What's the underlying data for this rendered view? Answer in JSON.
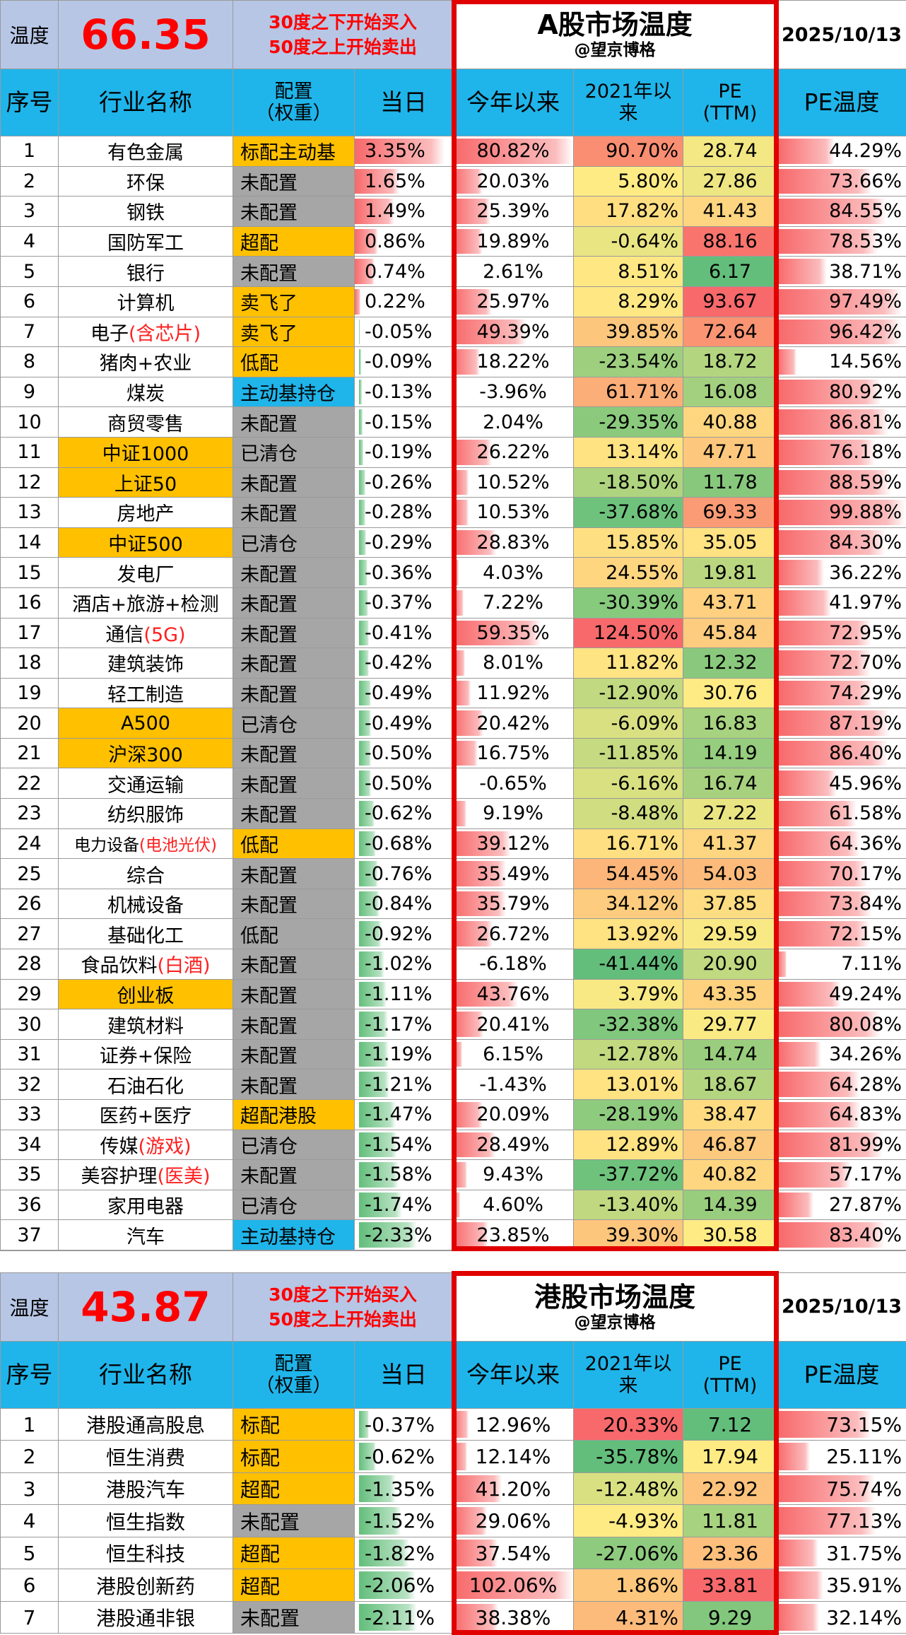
{
  "a_share": {
    "temp_label": "温度",
    "temp_value": "66.35",
    "note_buy": "30度之下开始买入",
    "note_sell": "50度之上开始卖出",
    "title": "A股市场温度",
    "subtitle": "@望京博格",
    "date": "2025/10/13",
    "headers": {
      "seq": "序号",
      "name": "行业名称",
      "cfg_line1": "配置",
      "cfg_line2": "（权重）",
      "day": "当日",
      "ytd": "今年以来",
      "since2021_line1": "2021年以",
      "since2021_line2": "来",
      "pe_line1": "PE",
      "pe_line2": "(TTM)",
      "pe_temp": "PE温度"
    },
    "rows": [
      {
        "seq": "1",
        "name": "有色金属",
        "name_hl": "",
        "cfg": "标配主动基",
        "cfg_style": "orange",
        "day": "3.35%",
        "ytd": "80.82%",
        "s2021": "90.70%",
        "pe": "28.74",
        "pe_temp": "44.29%"
      },
      {
        "seq": "2",
        "name": "环保",
        "name_hl": "",
        "cfg": "未配置",
        "cfg_style": "grey",
        "day": "1.65%",
        "ytd": "20.03%",
        "s2021": "5.80%",
        "pe": "27.86",
        "pe_temp": "73.66%"
      },
      {
        "seq": "3",
        "name": "钢铁",
        "name_hl": "",
        "cfg": "未配置",
        "cfg_style": "grey",
        "day": "1.49%",
        "ytd": "25.39%",
        "s2021": "17.82%",
        "pe": "41.43",
        "pe_temp": "84.55%"
      },
      {
        "seq": "4",
        "name": "国防军工",
        "name_hl": "",
        "cfg": "超配",
        "cfg_style": "orange",
        "day": "0.86%",
        "ytd": "19.89%",
        "s2021": "-0.64%",
        "pe": "88.16",
        "pe_temp": "78.53%"
      },
      {
        "seq": "5",
        "name": "银行",
        "name_hl": "",
        "cfg": "未配置",
        "cfg_style": "grey",
        "day": "0.74%",
        "ytd": "2.61%",
        "s2021": "8.51%",
        "pe": "6.17",
        "pe_temp": "38.71%"
      },
      {
        "seq": "6",
        "name": "计算机",
        "name_hl": "",
        "cfg": "卖飞了",
        "cfg_style": "orange",
        "day": "0.22%",
        "ytd": "25.97%",
        "s2021": "8.29%",
        "pe": "93.67",
        "pe_temp": "97.49%"
      },
      {
        "seq": "7",
        "name": "电子",
        "name_red": "(含芯片)",
        "name_hl": "",
        "cfg": "卖飞了",
        "cfg_style": "orange",
        "day": "-0.05%",
        "ytd": "49.39%",
        "s2021": "39.85%",
        "pe": "72.64",
        "pe_temp": "96.42%"
      },
      {
        "seq": "8",
        "name": "猪肉+农业",
        "name_hl": "",
        "cfg": "低配",
        "cfg_style": "orange",
        "day": "-0.09%",
        "ytd": "18.22%",
        "s2021": "-23.54%",
        "pe": "18.72",
        "pe_temp": "14.56%"
      },
      {
        "seq": "9",
        "name": "煤炭",
        "name_hl": "",
        "cfg": "主动基持仓",
        "cfg_style": "blue",
        "day": "-0.13%",
        "ytd": "-3.96%",
        "s2021": "61.71%",
        "pe": "16.08",
        "pe_temp": "80.92%"
      },
      {
        "seq": "10",
        "name": "商贸零售",
        "name_hl": "",
        "cfg": "未配置",
        "cfg_style": "grey",
        "day": "-0.15%",
        "ytd": "2.04%",
        "s2021": "-29.35%",
        "pe": "40.88",
        "pe_temp": "86.81%"
      },
      {
        "seq": "11",
        "name": "中证1000",
        "name_hl": "orange",
        "cfg": "已清仓",
        "cfg_style": "grey",
        "day": "-0.19%",
        "ytd": "26.22%",
        "s2021": "13.14%",
        "pe": "47.71",
        "pe_temp": "76.18%"
      },
      {
        "seq": "12",
        "name": "上证50",
        "name_hl": "orange",
        "cfg": "未配置",
        "cfg_style": "grey",
        "day": "-0.26%",
        "ytd": "10.52%",
        "s2021": "-18.50%",
        "pe": "11.78",
        "pe_temp": "88.59%"
      },
      {
        "seq": "13",
        "name": "房地产",
        "name_hl": "",
        "cfg": "未配置",
        "cfg_style": "grey",
        "day": "-0.28%",
        "ytd": "10.53%",
        "s2021": "-37.68%",
        "pe": "69.33",
        "pe_temp": "99.88%"
      },
      {
        "seq": "14",
        "name": "中证500",
        "name_hl": "orange",
        "cfg": "已清仓",
        "cfg_style": "grey",
        "day": "-0.29%",
        "ytd": "28.83%",
        "s2021": "15.85%",
        "pe": "35.05",
        "pe_temp": "84.30%"
      },
      {
        "seq": "15",
        "name": "发电厂",
        "name_hl": "",
        "cfg": "未配置",
        "cfg_style": "grey",
        "day": "-0.36%",
        "ytd": "4.03%",
        "s2021": "24.55%",
        "pe": "19.81",
        "pe_temp": "36.22%"
      },
      {
        "seq": "16",
        "name": "酒店+旅游+检测",
        "name_hl": "",
        "cfg": "未配置",
        "cfg_style": "grey",
        "day": "-0.37%",
        "ytd": "7.22%",
        "s2021": "-30.39%",
        "pe": "43.71",
        "pe_temp": "41.97%"
      },
      {
        "seq": "17",
        "name": "通信",
        "name_red": "(5G)",
        "name_hl": "",
        "cfg": "未配置",
        "cfg_style": "grey",
        "day": "-0.41%",
        "ytd": "59.35%",
        "s2021": "124.50%",
        "pe": "45.84",
        "pe_temp": "72.95%"
      },
      {
        "seq": "18",
        "name": "建筑装饰",
        "name_hl": "",
        "cfg": "未配置",
        "cfg_style": "grey",
        "day": "-0.42%",
        "ytd": "8.01%",
        "s2021": "11.82%",
        "pe": "12.32",
        "pe_temp": "72.70%"
      },
      {
        "seq": "19",
        "name": "轻工制造",
        "name_hl": "",
        "cfg": "未配置",
        "cfg_style": "grey",
        "day": "-0.49%",
        "ytd": "11.92%",
        "s2021": "-12.90%",
        "pe": "30.76",
        "pe_temp": "74.29%"
      },
      {
        "seq": "20",
        "name": "A500",
        "name_hl": "orange",
        "cfg": "已清仓",
        "cfg_style": "grey",
        "day": "-0.49%",
        "ytd": "20.42%",
        "s2021": "-6.09%",
        "pe": "16.83",
        "pe_temp": "87.19%"
      },
      {
        "seq": "21",
        "name": "沪深300",
        "name_hl": "orange",
        "cfg": "未配置",
        "cfg_style": "grey",
        "day": "-0.50%",
        "ytd": "16.75%",
        "s2021": "-11.85%",
        "pe": "14.19",
        "pe_temp": "86.40%"
      },
      {
        "seq": "22",
        "name": "交通运输",
        "name_hl": "",
        "cfg": "未配置",
        "cfg_style": "grey",
        "day": "-0.50%",
        "ytd": "-0.65%",
        "s2021": "-6.16%",
        "pe": "16.74",
        "pe_temp": "45.96%"
      },
      {
        "seq": "23",
        "name": "纺织服饰",
        "name_hl": "",
        "cfg": "未配置",
        "cfg_style": "grey",
        "day": "-0.62%",
        "ytd": "9.19%",
        "s2021": "-8.48%",
        "pe": "27.22",
        "pe_temp": "61.58%"
      },
      {
        "seq": "24",
        "name": "电力设备",
        "name_red": "(电池光伏)",
        "name_hl": "",
        "name_small": true,
        "cfg": "低配",
        "cfg_style": "orange",
        "day": "-0.68%",
        "ytd": "39.12%",
        "s2021": "16.71%",
        "pe": "41.37",
        "pe_temp": "64.36%"
      },
      {
        "seq": "25",
        "name": "综合",
        "name_hl": "",
        "cfg": "未配置",
        "cfg_style": "grey",
        "day": "-0.76%",
        "ytd": "35.49%",
        "s2021": "54.45%",
        "pe": "54.03",
        "pe_temp": "70.17%"
      },
      {
        "seq": "26",
        "name": "机械设备",
        "name_hl": "",
        "cfg": "未配置",
        "cfg_style": "grey",
        "day": "-0.84%",
        "ytd": "35.79%",
        "s2021": "34.12%",
        "pe": "37.85",
        "pe_temp": "73.84%"
      },
      {
        "seq": "27",
        "name": "基础化工",
        "name_hl": "",
        "cfg": "低配",
        "cfg_style": "grey",
        "day": "-0.92%",
        "ytd": "26.72%",
        "s2021": "13.92%",
        "pe": "29.59",
        "pe_temp": "72.15%"
      },
      {
        "seq": "28",
        "name": "食品饮料",
        "name_red": "(白酒)",
        "name_hl": "",
        "cfg": "未配置",
        "cfg_style": "grey",
        "day": "-1.02%",
        "ytd": "-6.18%",
        "s2021": "-41.44%",
        "pe": "20.90",
        "pe_temp": "7.11%"
      },
      {
        "seq": "29",
        "name": "创业板",
        "name_hl": "orange",
        "cfg": "未配置",
        "cfg_style": "grey",
        "day": "-1.11%",
        "ytd": "43.76%",
        "s2021": "3.79%",
        "pe": "43.35",
        "pe_temp": "49.24%"
      },
      {
        "seq": "30",
        "name": "建筑材料",
        "name_hl": "",
        "cfg": "未配置",
        "cfg_style": "grey",
        "day": "-1.17%",
        "ytd": "20.41%",
        "s2021": "-32.38%",
        "pe": "29.77",
        "pe_temp": "80.08%"
      },
      {
        "seq": "31",
        "name": "证券+保险",
        "name_hl": "",
        "cfg": "未配置",
        "cfg_style": "grey",
        "day": "-1.19%",
        "ytd": "6.15%",
        "s2021": "-12.78%",
        "pe": "14.74",
        "pe_temp": "34.26%"
      },
      {
        "seq": "32",
        "name": "石油石化",
        "name_hl": "",
        "cfg": "未配置",
        "cfg_style": "grey",
        "day": "-1.21%",
        "ytd": "-1.43%",
        "s2021": "13.01%",
        "pe": "18.67",
        "pe_temp": "64.28%"
      },
      {
        "seq": "33",
        "name": "医药+医疗",
        "name_hl": "",
        "cfg": "超配港股",
        "cfg_style": "orange",
        "day": "-1.47%",
        "ytd": "20.09%",
        "s2021": "-28.19%",
        "pe": "38.47",
        "pe_temp": "64.83%"
      },
      {
        "seq": "34",
        "name": "传媒",
        "name_red": "(游戏)",
        "name_hl": "",
        "cfg": "已清仓",
        "cfg_style": "grey",
        "day": "-1.54%",
        "ytd": "28.49%",
        "s2021": "12.89%",
        "pe": "46.87",
        "pe_temp": "81.99%"
      },
      {
        "seq": "35",
        "name": "美容护理",
        "name_red": "(医美)",
        "name_hl": "",
        "cfg": "未配置",
        "cfg_style": "grey",
        "day": "-1.58%",
        "ytd": "9.43%",
        "s2021": "-37.72%",
        "pe": "40.82",
        "pe_temp": "57.17%"
      },
      {
        "seq": "36",
        "name": "家用电器",
        "name_hl": "",
        "cfg": "已清仓",
        "cfg_style": "grey",
        "day": "-1.74%",
        "ytd": "4.60%",
        "s2021": "-13.40%",
        "pe": "14.39",
        "pe_temp": "27.87%"
      },
      {
        "seq": "37",
        "name": "汽车",
        "name_hl": "",
        "cfg": "主动基持仓",
        "cfg_style": "blue",
        "day": "-2.33%",
        "ytd": "23.85%",
        "s2021": "39.30%",
        "pe": "30.58",
        "pe_temp": "83.40%"
      }
    ]
  },
  "hk_share": {
    "temp_label": "温度",
    "temp_value": "43.87",
    "note_buy": "30度之下开始买入",
    "note_sell": "50度之上开始卖出",
    "title": "港股市场温度",
    "subtitle": "@望京博格",
    "date": "2025/10/13",
    "headers": {
      "seq": "序号",
      "name": "行业名称",
      "cfg_line1": "配置",
      "cfg_line2": "（权重）",
      "day": "当日",
      "ytd": "今年以来",
      "since2021_line1": "2021年以",
      "since2021_line2": "来",
      "pe_line1": "PE",
      "pe_line2": "(TTM)",
      "pe_temp": "PE温度"
    },
    "rows": [
      {
        "seq": "1",
        "name": "港股通高股息",
        "cfg": "标配",
        "cfg_style": "orange",
        "day": "-0.37%",
        "ytd": "12.96%",
        "s2021": "20.33%",
        "pe": "7.12",
        "pe_temp": "73.15%"
      },
      {
        "seq": "2",
        "name": "恒生消费",
        "cfg": "标配",
        "cfg_style": "orange",
        "day": "-0.62%",
        "ytd": "12.14%",
        "s2021": "-35.78%",
        "pe": "17.94",
        "pe_temp": "25.11%"
      },
      {
        "seq": "3",
        "name": "港股汽车",
        "cfg": "超配",
        "cfg_style": "orange",
        "day": "-1.35%",
        "ytd": "41.20%",
        "s2021": "-12.48%",
        "pe": "22.92",
        "pe_temp": "75.74%"
      },
      {
        "seq": "4",
        "name": "恒生指数",
        "cfg": "未配置",
        "cfg_style": "grey",
        "day": "-1.52%",
        "ytd": "29.06%",
        "s2021": "-4.93%",
        "pe": "11.81",
        "pe_temp": "77.13%"
      },
      {
        "seq": "5",
        "name": "恒生科技",
        "cfg": "超配",
        "cfg_style": "orange",
        "day": "-1.82%",
        "ytd": "37.54%",
        "s2021": "-27.06%",
        "pe": "23.36",
        "pe_temp": "31.75%"
      },
      {
        "seq": "6",
        "name": "港股创新药",
        "cfg": "超配",
        "cfg_style": "orange",
        "day": "-2.06%",
        "ytd": "102.06%",
        "s2021": "1.86%",
        "pe": "33.81",
        "pe_temp": "35.91%"
      },
      {
        "seq": "7",
        "name": "港股通非银",
        "cfg": "未配置",
        "cfg_style": "grey",
        "day": "-2.11%",
        "ytd": "38.38%",
        "s2021": "4.31%",
        "pe": "9.29",
        "pe_temp": "32.14%"
      }
    ]
  }
}
